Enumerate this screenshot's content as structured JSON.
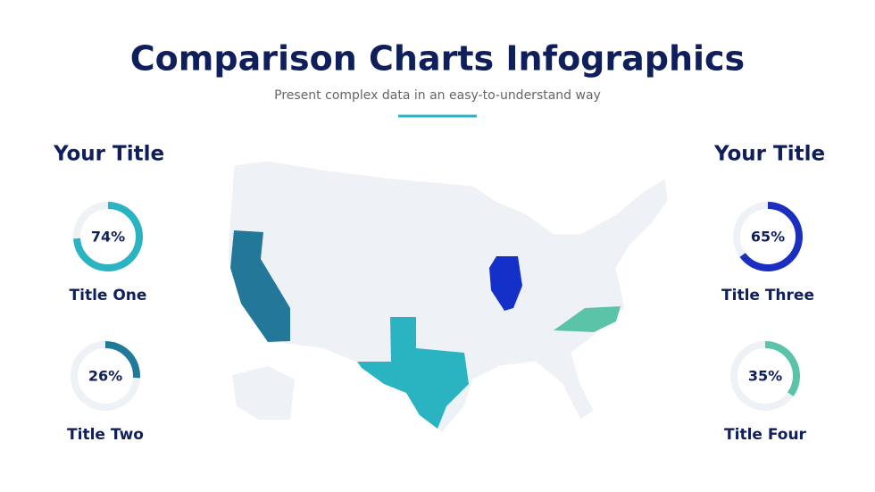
{
  "header": {
    "title": "Comparison Charts Infographics",
    "subtitle": "Present complex data in an easy-to-understand way"
  },
  "panels": [
    {
      "title": "Your Title",
      "gauges": [
        {
          "value": 74,
          "value_label": "74%",
          "label": "Title One",
          "color": "#2ab3c0"
        },
        {
          "value": 26,
          "value_label": "26%",
          "label": "Title Two",
          "color": "#1f7a9a"
        }
      ]
    },
    {
      "title": "Your Title",
      "gauges": [
        {
          "value": 65,
          "value_label": "65%",
          "label": "Title Three",
          "color": "#1a2fbf"
        },
        {
          "value": 35,
          "value_label": "35%",
          "label": "Title Four",
          "color": "#5bc4a8"
        }
      ]
    }
  ]
}
